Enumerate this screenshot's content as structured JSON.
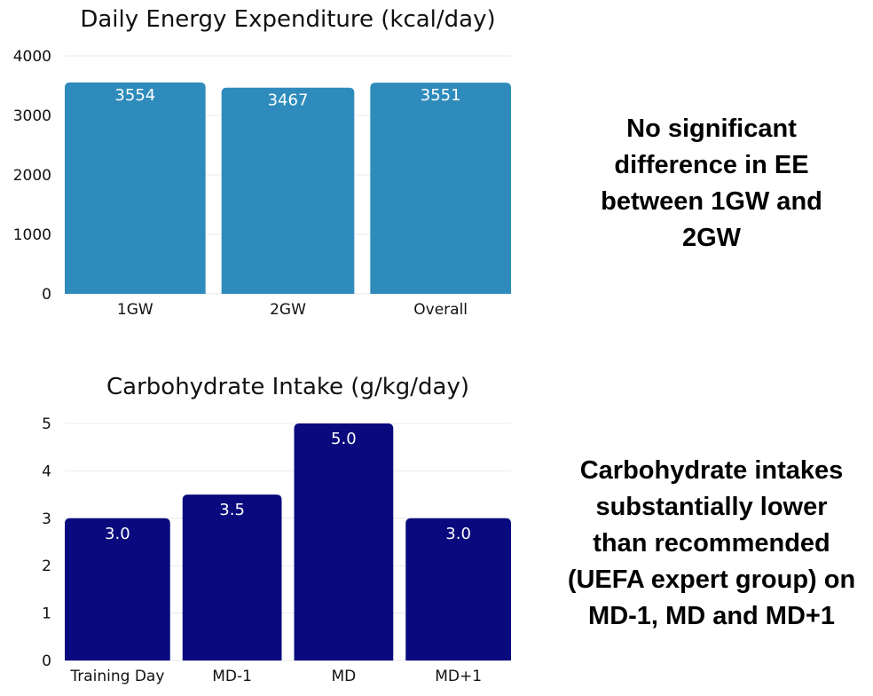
{
  "chart_data": [
    {
      "type": "bar",
      "title": "Daily Energy Expenditure (kcal/day)",
      "categories": [
        "1GW",
        "2GW",
        "Overall"
      ],
      "values": [
        3554,
        3467,
        3551
      ],
      "data_labels": [
        "3554",
        "3467",
        "3551"
      ],
      "yticks": [
        0,
        1000,
        2000,
        3000,
        4000
      ],
      "ylim": [
        0,
        4000
      ],
      "xlabel": "",
      "ylabel": "",
      "color": "#2e8bbc",
      "grid": true
    },
    {
      "type": "bar",
      "title": "Carbohydrate Intake (g/kg/day)",
      "categories": [
        "Training Day",
        "MD-1",
        "MD",
        "MD+1"
      ],
      "values": [
        3.0,
        3.5,
        5.0,
        3.0
      ],
      "data_labels": [
        "3.0",
        "3.5",
        "5.0",
        "3.0"
      ],
      "yticks": [
        0,
        1,
        2,
        3,
        4,
        5
      ],
      "ylim": [
        0,
        5
      ],
      "xlabel": "",
      "ylabel": "",
      "color": "#0a0a7e",
      "grid": true
    }
  ],
  "annotations": {
    "ee_line1": "No significant",
    "ee_line2": "difference in EE",
    "ee_line3": "between 1GW and",
    "ee_line4": "2GW",
    "cho_line1": "Carbohydrate intakes",
    "cho_line2": "substantially lower",
    "cho_line3": "than recommended",
    "cho_line4": "(UEFA expert group) on",
    "cho_line5": "MD-1, MD and MD+1"
  }
}
